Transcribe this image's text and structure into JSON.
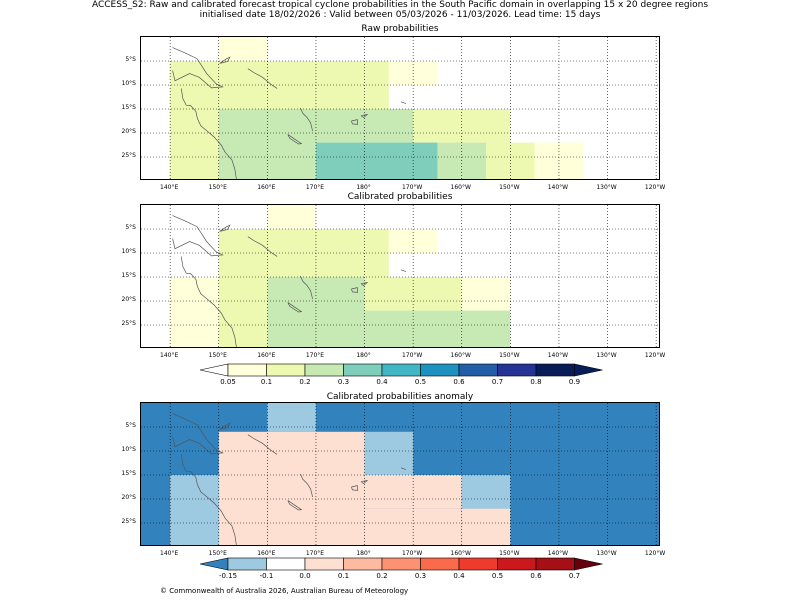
{
  "title_line1": "ACCESS_S2: Raw and calibrated forecast tropical cyclone probabilities in the South Pacific domain in overlapping 15 x 20 degree regions",
  "title_line2": "initialised date 18/02/2026 :  Valid between 05/03/2026 - 11/03/2026. Lead time: 15 days",
  "panel_titles": [
    "Raw probabilities",
    "Calibrated probabilities",
    "Calibrated probabilities anomaly"
  ],
  "lat_labels": [
    "5°S",
    "10°S",
    "15°S",
    "20°S",
    "25°S"
  ],
  "lon_labels": [
    "140°E",
    "150°E",
    "160°E",
    "170°E",
    "180°",
    "170°W",
    "160°W",
    "150°W",
    "140°W",
    "130°W",
    "120°W"
  ],
  "prob_colorbar": {
    "labels": [
      "0.05",
      "0.1",
      "0.2",
      "0.3",
      "0.4",
      "0.5",
      "0.6",
      "0.7",
      "0.8",
      "0.9"
    ],
    "colors": [
      "#ffffd9",
      "#edf8b1",
      "#c7e9b4",
      "#7fcdbb",
      "#41b6c4",
      "#1d91c0",
      "#225ea8",
      "#253494",
      "#081d58"
    ],
    "under_color": "#ffffff",
    "over_color": "#081d58"
  },
  "anom_colorbar": {
    "labels": [
      "-0.15",
      "-0.1",
      "0.0",
      "0.1",
      "0.2",
      "0.3",
      "0.4",
      "0.5",
      "0.6",
      "0.7"
    ],
    "colors": [
      "#9ecae1",
      "#ffffff",
      "#fee0d2",
      "#fcbba1",
      "#fc9272",
      "#fb6a4a",
      "#ef3b2c",
      "#cb181d",
      "#a50f15"
    ],
    "under_color": "#3182bd",
    "over_color": "#67000d"
  },
  "map_extent": {
    "lon_min": 134,
    "lon_max": 241,
    "lat_max": 0,
    "lat_min": -30
  },
  "raw_regions": [
    {
      "lon": [
        150,
        160
      ],
      "lat": [
        0,
        -5
      ],
      "value": 0.07
    },
    {
      "lon": [
        140,
        185
      ],
      "lat": [
        -5,
        -15
      ],
      "value": 0.15
    },
    {
      "lon": [
        185,
        195
      ],
      "lat": [
        -5,
        -10
      ],
      "value": 0.07
    },
    {
      "lon": [
        140,
        150
      ],
      "lat": [
        -15,
        -30
      ],
      "value": 0.15
    },
    {
      "lon": [
        150,
        170
      ],
      "lat": [
        -15,
        -30
      ],
      "value": 0.25
    },
    {
      "lon": [
        170,
        190
      ],
      "lat": [
        -15,
        -22
      ],
      "value": 0.25
    },
    {
      "lon": [
        190,
        210
      ],
      "lat": [
        -15,
        -22
      ],
      "value": 0.15
    },
    {
      "lon": [
        170,
        195
      ],
      "lat": [
        -22,
        -30
      ],
      "value": 0.35
    },
    {
      "lon": [
        195,
        205
      ],
      "lat": [
        -22,
        -30
      ],
      "value": 0.25
    },
    {
      "lon": [
        205,
        215
      ],
      "lat": [
        -22,
        -30
      ],
      "value": 0.15
    },
    {
      "lon": [
        215,
        225
      ],
      "lat": [
        -22,
        -30
      ],
      "value": 0.07
    }
  ],
  "cal_regions": [
    {
      "lon": [
        160,
        170
      ],
      "lat": [
        0,
        -5
      ],
      "value": 0.07
    },
    {
      "lon": [
        150,
        185
      ],
      "lat": [
        -5,
        -15
      ],
      "value": 0.15
    },
    {
      "lon": [
        185,
        195
      ],
      "lat": [
        -5,
        -10
      ],
      "value": 0.07
    },
    {
      "lon": [
        140,
        150
      ],
      "lat": [
        -15,
        -30
      ],
      "value": 0.07
    },
    {
      "lon": [
        150,
        160
      ],
      "lat": [
        -15,
        -30
      ],
      "value": 0.15
    },
    {
      "lon": [
        160,
        180
      ],
      "lat": [
        -15,
        -30
      ],
      "value": 0.25
    },
    {
      "lon": [
        180,
        200
      ],
      "lat": [
        -15,
        -22
      ],
      "value": 0.15
    },
    {
      "lon": [
        200,
        210
      ],
      "lat": [
        -15,
        -22
      ],
      "value": 0.07
    },
    {
      "lon": [
        180,
        210
      ],
      "lat": [
        -22,
        -30
      ],
      "value": 0.25
    }
  ],
  "anom_regions": [
    {
      "lon": [
        134,
        241
      ],
      "lat": [
        0,
        -30
      ],
      "value": -0.2
    },
    {
      "lon": [
        160,
        170
      ],
      "lat": [
        0,
        -6
      ],
      "value": -0.12
    },
    {
      "lon": [
        150,
        180
      ],
      "lat": [
        -6,
        -15
      ],
      "value": 0.0
    },
    {
      "lon": [
        180,
        190
      ],
      "lat": [
        -6,
        -15
      ],
      "value": -0.12
    },
    {
      "lon": [
        140,
        150
      ],
      "lat": [
        -15,
        -30
      ],
      "value": -0.12
    },
    {
      "lon": [
        150,
        160
      ],
      "lat": [
        -15,
        -30
      ],
      "value": 0.0
    },
    {
      "lon": [
        160,
        180
      ],
      "lat": [
        -15,
        -30
      ],
      "value": 0.05
    },
    {
      "lon": [
        180,
        200
      ],
      "lat": [
        -15,
        -22
      ],
      "value": 0.0
    },
    {
      "lon": [
        180,
        200
      ],
      "lat": [
        -22,
        -30
      ],
      "value": 0.05
    },
    {
      "lon": [
        200,
        210
      ],
      "lat": [
        -15,
        -22
      ],
      "value": -0.12
    },
    {
      "lon": [
        200,
        210
      ],
      "lat": [
        -22,
        -30
      ],
      "value": 0.0
    }
  ],
  "footer": "© Commonwealth of Australia 2026, Australian Bureau of Meteorology"
}
